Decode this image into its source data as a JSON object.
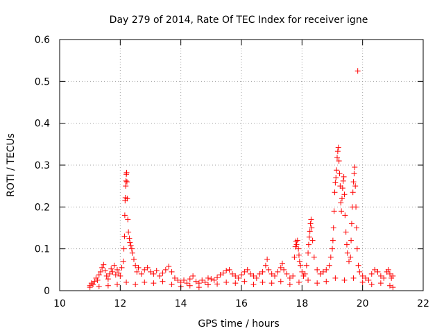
{
  "chart_data": {
    "type": "scatter",
    "title": "Day 279 of 2014, Rate Of TEC Index for receiver igne",
    "xlabel": "GPS time / hours",
    "ylabel": "ROTI / TECUs",
    "xlim": [
      10,
      22
    ],
    "ylim": [
      0,
      0.6
    ],
    "grid": true,
    "marker": "+",
    "color": "#ff0000",
    "x_ticks": [
      "10",
      "12",
      "14",
      "16",
      "18",
      "20",
      "22"
    ],
    "x_tick_values": [
      10,
      12,
      14,
      16,
      18,
      20,
      22
    ],
    "y_ticks": [
      "0",
      "0.1",
      "0.2",
      "0.3",
      "0.4",
      "0.5",
      "0.6"
    ],
    "y_tick_values": [
      0,
      0.1,
      0.2,
      0.3,
      0.4,
      0.5,
      0.6
    ],
    "series": [
      {
        "name": "ROTI",
        "points": [
          [
            11.0,
            0.012
          ],
          [
            11.05,
            0.018
          ],
          [
            11.1,
            0.015
          ],
          [
            11.15,
            0.022
          ],
          [
            11.2,
            0.03
          ],
          [
            11.25,
            0.025
          ],
          [
            11.3,
            0.038
          ],
          [
            11.35,
            0.045
          ],
          [
            11.4,
            0.055
          ],
          [
            11.45,
            0.062
          ],
          [
            11.5,
            0.048
          ],
          [
            11.55,
            0.035
          ],
          [
            11.6,
            0.028
          ],
          [
            11.65,
            0.04
          ],
          [
            11.7,
            0.052
          ],
          [
            11.75,
            0.045
          ],
          [
            11.8,
            0.06
          ],
          [
            11.85,
            0.038
          ],
          [
            11.9,
            0.05
          ],
          [
            11.95,
            0.042
          ],
          [
            12.0,
            0.035
          ],
          [
            12.05,
            0.055
          ],
          [
            12.1,
            0.07
          ],
          [
            12.12,
            0.1
          ],
          [
            12.14,
            0.13
          ],
          [
            12.15,
            0.18
          ],
          [
            12.16,
            0.215
          ],
          [
            12.17,
            0.222
          ],
          [
            12.18,
            0.25
          ],
          [
            12.19,
            0.262
          ],
          [
            12.2,
            0.278
          ],
          [
            12.21,
            0.282
          ],
          [
            12.22,
            0.26
          ],
          [
            12.23,
            0.22
          ],
          [
            12.25,
            0.17
          ],
          [
            12.27,
            0.14
          ],
          [
            12.3,
            0.125
          ],
          [
            12.32,
            0.115
          ],
          [
            12.35,
            0.108
          ],
          [
            12.38,
            0.1
          ],
          [
            12.4,
            0.09
          ],
          [
            12.45,
            0.075
          ],
          [
            12.5,
            0.06
          ],
          [
            12.55,
            0.045
          ],
          [
            12.6,
            0.055
          ],
          [
            12.7,
            0.04
          ],
          [
            12.8,
            0.05
          ],
          [
            12.9,
            0.055
          ],
          [
            13.0,
            0.045
          ],
          [
            13.1,
            0.04
          ],
          [
            13.2,
            0.048
          ],
          [
            13.3,
            0.035
          ],
          [
            13.4,
            0.042
          ],
          [
            13.5,
            0.05
          ],
          [
            13.6,
            0.058
          ],
          [
            13.7,
            0.045
          ],
          [
            13.8,
            0.03
          ],
          [
            13.9,
            0.025
          ],
          [
            14.0,
            0.02
          ],
          [
            14.1,
            0.025
          ],
          [
            14.2,
            0.018
          ],
          [
            14.3,
            0.028
          ],
          [
            14.4,
            0.035
          ],
          [
            14.5,
            0.022
          ],
          [
            14.6,
            0.018
          ],
          [
            14.7,
            0.025
          ],
          [
            14.8,
            0.02
          ],
          [
            14.9,
            0.03
          ],
          [
            15.0,
            0.028
          ],
          [
            15.1,
            0.025
          ],
          [
            15.2,
            0.032
          ],
          [
            15.3,
            0.038
          ],
          [
            15.4,
            0.042
          ],
          [
            15.5,
            0.048
          ],
          [
            15.6,
            0.05
          ],
          [
            15.7,
            0.04
          ],
          [
            15.8,
            0.035
          ],
          [
            15.9,
            0.03
          ],
          [
            16.0,
            0.038
          ],
          [
            16.1,
            0.045
          ],
          [
            16.2,
            0.05
          ],
          [
            16.3,
            0.04
          ],
          [
            16.4,
            0.035
          ],
          [
            16.5,
            0.03
          ],
          [
            16.6,
            0.04
          ],
          [
            16.7,
            0.045
          ],
          [
            16.8,
            0.06
          ],
          [
            16.85,
            0.075
          ],
          [
            16.9,
            0.05
          ],
          [
            17.0,
            0.04
          ],
          [
            17.1,
            0.035
          ],
          [
            17.2,
            0.045
          ],
          [
            17.3,
            0.055
          ],
          [
            17.35,
            0.065
          ],
          [
            17.4,
            0.05
          ],
          [
            17.5,
            0.04
          ],
          [
            17.6,
            0.03
          ],
          [
            17.7,
            0.035
          ],
          [
            17.75,
            0.08
          ],
          [
            17.78,
            0.105
          ],
          [
            17.8,
            0.118
          ],
          [
            17.82,
            0.11
          ],
          [
            17.85,
            0.12
          ],
          [
            17.88,
            0.1
          ],
          [
            17.9,
            0.085
          ],
          [
            17.92,
            0.07
          ],
          [
            17.95,
            0.06
          ],
          [
            18.0,
            0.045
          ],
          [
            18.05,
            0.035
          ],
          [
            18.1,
            0.04
          ],
          [
            18.15,
            0.06
          ],
          [
            18.2,
            0.09
          ],
          [
            18.22,
            0.11
          ],
          [
            18.24,
            0.128
          ],
          [
            18.26,
            0.142
          ],
          [
            18.28,
            0.16
          ],
          [
            18.3,
            0.17
          ],
          [
            18.32,
            0.15
          ],
          [
            18.35,
            0.12
          ],
          [
            18.4,
            0.08
          ],
          [
            18.5,
            0.05
          ],
          [
            18.6,
            0.04
          ],
          [
            18.7,
            0.045
          ],
          [
            18.8,
            0.05
          ],
          [
            18.9,
            0.06
          ],
          [
            18.95,
            0.08
          ],
          [
            19.0,
            0.1
          ],
          [
            19.02,
            0.12
          ],
          [
            19.04,
            0.15
          ],
          [
            19.06,
            0.19
          ],
          [
            19.08,
            0.235
          ],
          [
            19.1,
            0.258
          ],
          [
            19.12,
            0.27
          ],
          [
            19.14,
            0.288
          ],
          [
            19.16,
            0.318
          ],
          [
            19.18,
            0.333
          ],
          [
            19.2,
            0.342
          ],
          [
            19.22,
            0.31
          ],
          [
            19.24,
            0.28
          ],
          [
            19.26,
            0.25
          ],
          [
            19.28,
            0.21
          ],
          [
            19.3,
            0.19
          ],
          [
            19.32,
            0.22
          ],
          [
            19.34,
            0.245
          ],
          [
            19.36,
            0.262
          ],
          [
            19.38,
            0.272
          ],
          [
            19.4,
            0.23
          ],
          [
            19.42,
            0.18
          ],
          [
            19.45,
            0.14
          ],
          [
            19.48,
            0.11
          ],
          [
            19.5,
            0.09
          ],
          [
            19.55,
            0.07
          ],
          [
            19.6,
            0.08
          ],
          [
            19.62,
            0.12
          ],
          [
            19.64,
            0.16
          ],
          [
            19.66,
            0.2
          ],
          [
            19.68,
            0.235
          ],
          [
            19.7,
            0.26
          ],
          [
            19.72,
            0.28
          ],
          [
            19.74,
            0.295
          ],
          [
            19.76,
            0.25
          ],
          [
            19.78,
            0.2
          ],
          [
            19.8,
            0.15
          ],
          [
            19.82,
            0.1
          ],
          [
            19.84,
            0.525
          ],
          [
            19.86,
            0.06
          ],
          [
            19.9,
            0.045
          ],
          [
            20.0,
            0.035
          ],
          [
            20.1,
            0.03
          ],
          [
            20.2,
            0.025
          ],
          [
            20.3,
            0.04
          ],
          [
            20.4,
            0.05
          ],
          [
            20.5,
            0.045
          ],
          [
            20.6,
            0.035
          ],
          [
            20.7,
            0.03
          ],
          [
            20.8,
            0.045
          ],
          [
            20.85,
            0.05
          ],
          [
            20.9,
            0.04
          ],
          [
            20.95,
            0.03
          ],
          [
            21.0,
            0.035
          ],
          [
            11.0,
            0.008
          ],
          [
            11.3,
            0.01
          ],
          [
            11.6,
            0.012
          ],
          [
            11.9,
            0.015
          ],
          [
            12.2,
            0.02
          ],
          [
            12.5,
            0.015
          ],
          [
            12.8,
            0.02
          ],
          [
            13.1,
            0.018
          ],
          [
            13.4,
            0.022
          ],
          [
            13.7,
            0.015
          ],
          [
            14.0,
            0.01
          ],
          [
            14.3,
            0.012
          ],
          [
            14.6,
            0.008
          ],
          [
            14.9,
            0.014
          ],
          [
            15.2,
            0.016
          ],
          [
            15.5,
            0.02
          ],
          [
            15.8,
            0.018
          ],
          [
            16.1,
            0.022
          ],
          [
            16.4,
            0.015
          ],
          [
            16.7,
            0.02
          ],
          [
            17.0,
            0.018
          ],
          [
            17.3,
            0.022
          ],
          [
            17.6,
            0.015
          ],
          [
            17.9,
            0.02
          ],
          [
            18.2,
            0.025
          ],
          [
            18.5,
            0.018
          ],
          [
            18.8,
            0.022
          ],
          [
            19.1,
            0.03
          ],
          [
            19.4,
            0.025
          ],
          [
            19.7,
            0.03
          ],
          [
            20.0,
            0.02
          ],
          [
            20.3,
            0.015
          ],
          [
            20.6,
            0.018
          ],
          [
            20.9,
            0.012
          ],
          [
            21.0,
            0.008
          ]
        ]
      }
    ]
  }
}
